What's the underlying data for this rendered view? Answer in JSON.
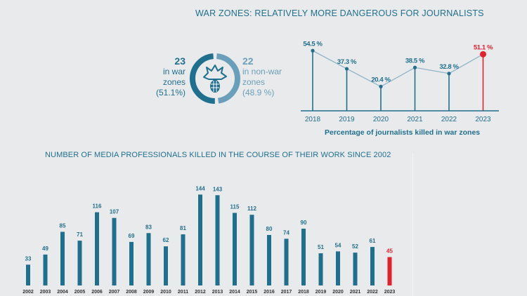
{
  "header": {
    "title": "WAR ZONES: RELATIVELY MORE DANGEROUS FOR JOURNALISTS"
  },
  "donut": {
    "war": {
      "count": "23",
      "line1": "in war",
      "line2": "zones",
      "pct_label": "(51.1%)",
      "pct": 51.1,
      "color": "#1f6f8e"
    },
    "nonwar": {
      "count": "22",
      "line1": "in non-war",
      "line2": "zones",
      "pct_label": "(48.9 %)",
      "pct": 48.9,
      "color": "#6a9fbb"
    }
  },
  "colors": {
    "accent": "#1f6f8e",
    "highlight": "#e5202e",
    "background": "#e9eaeb"
  },
  "bottom_title": "NUMBER OF MEDIA PROFESSIONALS KILLED IN THE COURSE OF THEIR WORK SINCE 2002",
  "chart_data": [
    {
      "type": "line",
      "caption": "Percentage of journalists killed in war zones",
      "categories": [
        "2018",
        "2019",
        "2020",
        "2021",
        "2022",
        "2023"
      ],
      "values": [
        54.5,
        37.3,
        20.4,
        38.5,
        32.8,
        51.1
      ],
      "labels": [
        "54.5 %",
        "37.3 %",
        "20.4 %",
        "38.5 %",
        "32.8 %",
        "51.1 %"
      ],
      "highlight_last": true
    },
    {
      "type": "bar",
      "categories": [
        "2002",
        "2003",
        "2004",
        "2005",
        "2006",
        "2007",
        "2008",
        "2009",
        "2010",
        "2011",
        "2012",
        "2013",
        "2014",
        "2015",
        "2016",
        "2017",
        "2018",
        "2019",
        "2020",
        "2021",
        "2022",
        "2023"
      ],
      "values": [
        33,
        49,
        85,
        71,
        116,
        107,
        69,
        83,
        62,
        81,
        144,
        143,
        115,
        112,
        80,
        74,
        90,
        51,
        54,
        52,
        61,
        45
      ],
      "highlight_last": true
    }
  ]
}
